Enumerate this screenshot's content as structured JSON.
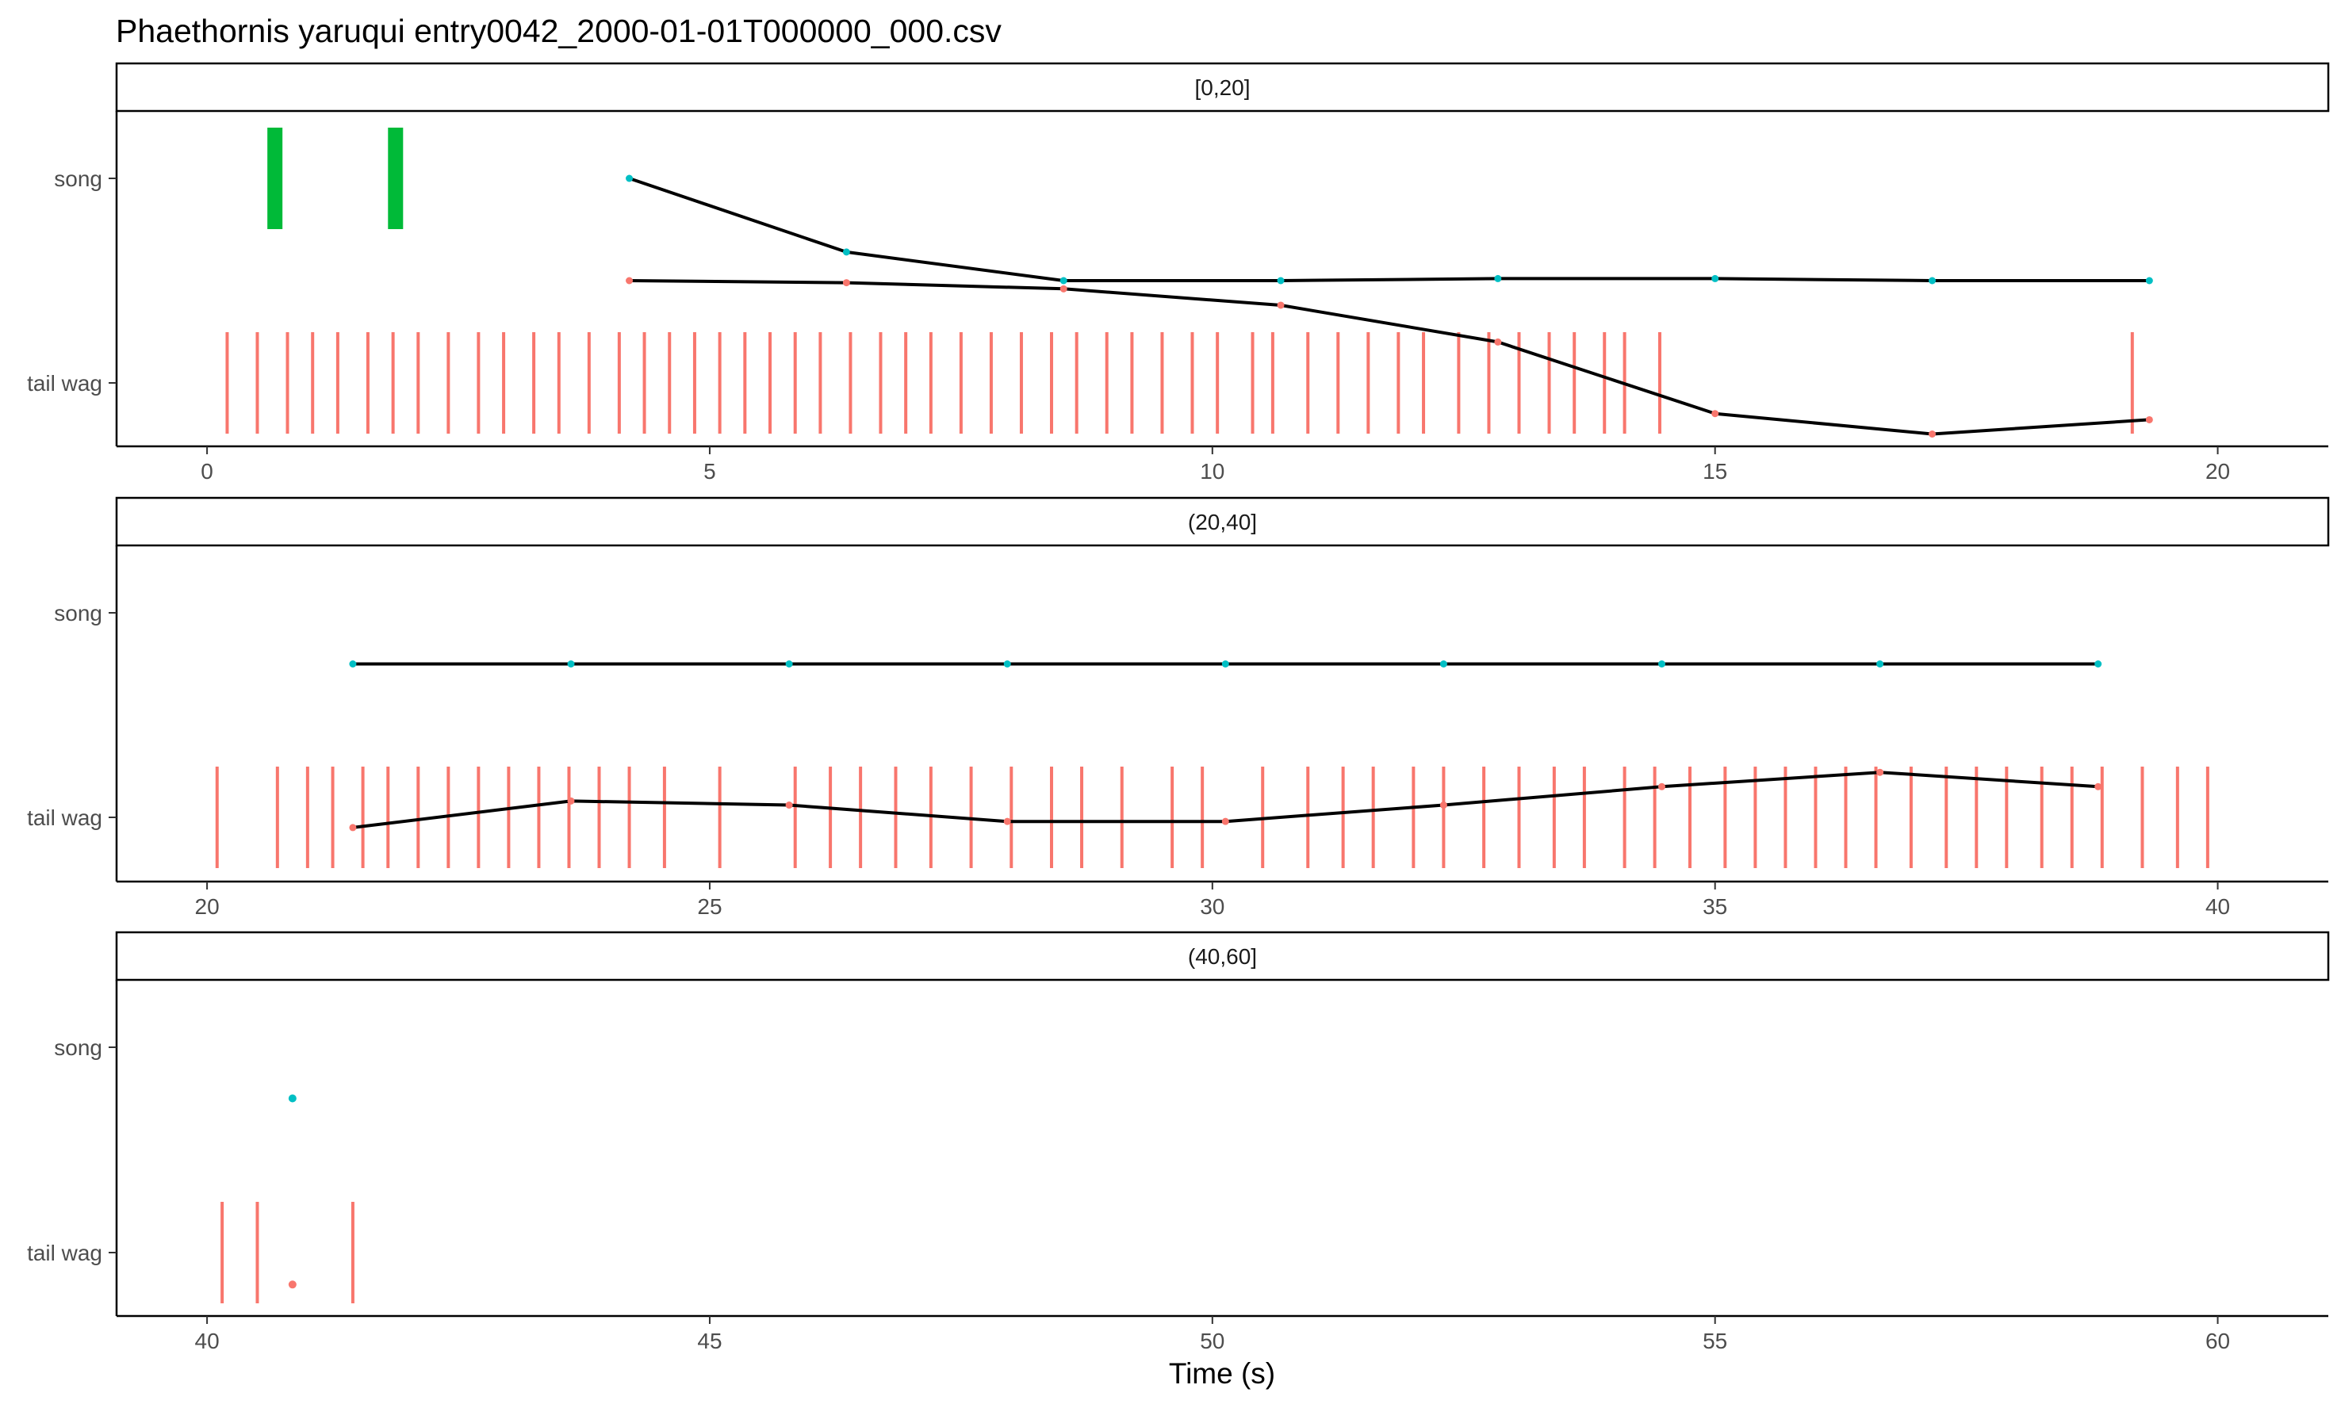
{
  "chart_data": {
    "type": "scatter",
    "title": "Phaethornis yaruqui   entry0042_2000-01-01T000000_000.csv",
    "xlabel": "Time (s)",
    "ylabel": "",
    "categories": [
      "song",
      "tail wag"
    ],
    "grid": false,
    "colors": {
      "tail_wag": "#F8766D",
      "song_event": "#00BA38",
      "song_point": "#00BFC4",
      "line": "#000000"
    },
    "panels": [
      {
        "label": "[0,20]",
        "xlim": [
          -0.9,
          21.1
        ],
        "xticks": [
          "0",
          "5",
          "10",
          "15",
          "20"
        ],
        "xtick_values": [
          0,
          5,
          10,
          15,
          20
        ],
        "song_events": [
          {
            "start": 0.6,
            "end": 0.75
          },
          {
            "start": 1.8,
            "end": 1.95
          }
        ],
        "tail_wag_events": [
          0.2,
          0.5,
          0.8,
          1.05,
          1.3,
          1.6,
          1.85,
          2.1,
          2.4,
          2.7,
          2.95,
          3.25,
          3.5,
          3.8,
          4.1,
          4.35,
          4.6,
          4.85,
          5.1,
          5.35,
          5.6,
          5.85,
          6.1,
          6.4,
          6.7,
          6.95,
          7.2,
          7.5,
          7.8,
          8.1,
          8.4,
          8.65,
          8.95,
          9.2,
          9.5,
          9.8,
          10.05,
          10.4,
          10.6,
          10.95,
          11.25,
          11.55,
          11.85,
          12.1,
          12.45,
          12.75,
          13.05,
          13.35,
          13.6,
          13.9,
          14.1,
          14.45,
          19.15
        ],
        "song_trend": {
          "x": [
            4.2,
            6.36,
            8.52,
            10.68,
            12.84,
            15.0,
            17.16,
            19.32
          ],
          "y": [
            1.0,
            0.64,
            0.5,
            0.5,
            0.51,
            0.51,
            0.5,
            0.5
          ]
        },
        "tail_wag_trend": {
          "x": [
            4.2,
            6.36,
            8.52,
            10.68,
            12.84,
            15.0,
            17.16,
            19.32
          ],
          "y": [
            0.5,
            0.49,
            0.46,
            0.38,
            0.2,
            -0.15,
            -0.25,
            -0.18
          ]
        }
      },
      {
        "label": "(20,40]",
        "xlim": [
          19.1,
          41.1
        ],
        "xticks": [
          "20",
          "25",
          "30",
          "35",
          "40"
        ],
        "xtick_values": [
          20,
          25,
          30,
          35,
          40
        ],
        "song_events": [],
        "tail_wag_events": [
          20.1,
          20.7,
          21.0,
          21.25,
          21.55,
          21.8,
          22.1,
          22.4,
          22.7,
          23.0,
          23.3,
          23.6,
          23.9,
          24.2,
          24.55,
          25.1,
          25.85,
          26.2,
          26.5,
          26.85,
          27.2,
          27.6,
          28.0,
          28.4,
          28.7,
          29.1,
          29.6,
          29.9,
          30.5,
          30.95,
          31.3,
          31.6,
          32.0,
          32.3,
          32.7,
          33.05,
          33.4,
          33.7,
          34.1,
          34.4,
          34.75,
          35.1,
          35.4,
          35.7,
          36.0,
          36.3,
          36.6,
          36.95,
          37.3,
          37.6,
          37.9,
          38.25,
          38.55,
          38.85,
          39.25,
          39.6,
          39.9
        ],
        "song_trend": {
          "x": [
            21.45,
            23.62,
            25.79,
            27.96,
            30.13,
            32.3,
            34.47,
            36.64,
            38.81
          ],
          "y": [
            0.75,
            0.75,
            0.75,
            0.75,
            0.75,
            0.75,
            0.75,
            0.75,
            0.75
          ]
        },
        "tail_wag_trend": {
          "x": [
            21.45,
            23.62,
            25.79,
            27.96,
            30.13,
            32.3,
            34.47,
            36.64,
            38.81
          ],
          "y": [
            -0.05,
            0.08,
            0.06,
            -0.02,
            -0.02,
            0.06,
            0.15,
            0.22,
            0.15
          ]
        }
      },
      {
        "label": "(40,60]",
        "xlim": [
          39.1,
          61.1
        ],
        "xticks": [
          "40",
          "45",
          "50",
          "55",
          "60"
        ],
        "xtick_values": [
          40,
          45,
          50,
          55,
          60
        ],
        "song_events": [],
        "tail_wag_events": [
          40.15,
          40.5,
          41.45
        ],
        "song_points": {
          "x": [
            40.85
          ],
          "y": [
            0.75
          ]
        },
        "tail_wag_points": {
          "x": [
            40.85
          ],
          "y": [
            -0.16
          ]
        }
      }
    ]
  }
}
